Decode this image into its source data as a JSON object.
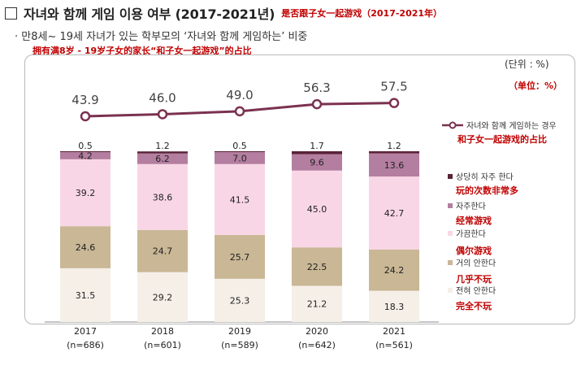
{
  "header": {
    "title": "자녀와 함께 게임 이용 여부 (2017-2021년)",
    "title_cn": "是否跟子女一起游戏（2017-2021年）",
    "subtitle": "만8세~ 19세 자녀가 있는 학부모의 ‘자녀와 함께 게임하는’ 비중",
    "subtitle_cn": "拥有满8岁 - 19岁子女的家长“和子女一起游戏”的占比",
    "unit": "(단위 : %)",
    "unit_cn": "（单位：%）"
  },
  "colors": {
    "line": "#7b3150",
    "very_often": "#5a2238",
    "often": "#b47ea0",
    "sometimes": "#f9d6e6",
    "rarely": "#c9b795",
    "never": "#f5efe8"
  },
  "chart_data": {
    "type": "bar",
    "stacked": true,
    "categories": [
      "2017",
      "2018",
      "2019",
      "2020",
      "2021"
    ],
    "sample_sizes": [
      "(n=686)",
      "(n=601)",
      "(n=589)",
      "(n=642)",
      "(n=561)"
    ],
    "series": [
      {
        "key": "never",
        "name": "전혀 안한다",
        "name_cn": "完全不玩",
        "values": [
          31.5,
          29.2,
          25.3,
          21.2,
          18.3
        ]
      },
      {
        "key": "rarely",
        "name": "거의 안한다",
        "name_cn": "几乎不玩",
        "values": [
          24.6,
          24.7,
          25.7,
          22.5,
          24.2
        ]
      },
      {
        "key": "sometimes",
        "name": "가끔한다",
        "name_cn": "偶尔游戏",
        "values": [
          39.2,
          38.6,
          41.5,
          45.0,
          42.7
        ]
      },
      {
        "key": "often",
        "name": "자주한다",
        "name_cn": "经常游戏",
        "values": [
          4.2,
          6.2,
          7.0,
          9.6,
          13.6
        ]
      },
      {
        "key": "very_often",
        "name": "상당히 자주 한다",
        "name_cn": "玩的次数非常多",
        "values": [
          0.5,
          1.2,
          0.5,
          1.7,
          1.2
        ]
      }
    ],
    "line_series": {
      "name": "자녀와 함께 게임하는 경우",
      "name_cn": "和子女一起游戏的占比",
      "values": [
        43.9,
        46.0,
        49.0,
        56.3,
        57.5
      ]
    },
    "ylim": [
      0,
      100
    ],
    "legend": "right"
  }
}
